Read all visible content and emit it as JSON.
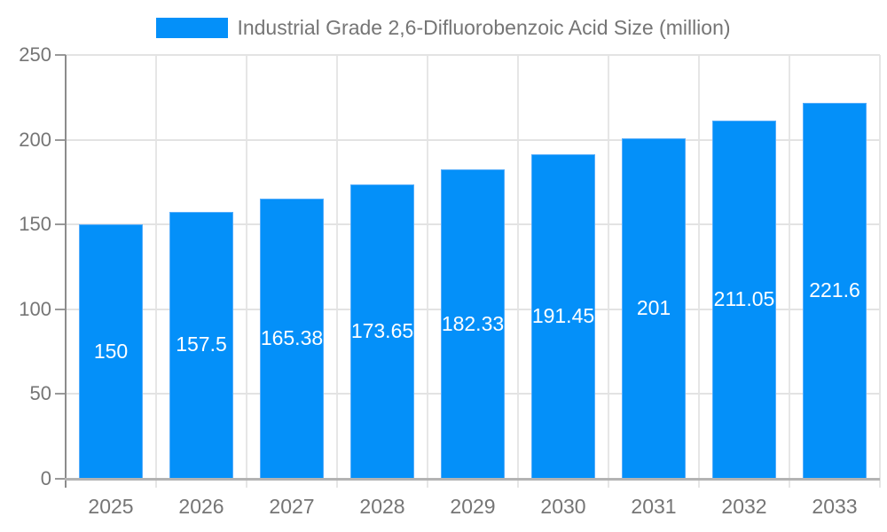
{
  "legend": {
    "label": "Industrial Grade 2,6-Difluorobenzoic Acid Size (million)"
  },
  "colors": {
    "bar_fill": "#0490f9",
    "bar_border": "#56adfb",
    "y_axis_line": "#8c8c8c",
    "x_axis_line": "#b3b3b3",
    "h_gridline": "#e3e3e3",
    "v_gridline": "#e6e6e6",
    "y_tick": "#999999",
    "axis_label_text": "#757575",
    "bar_label_text": "#ffffff",
    "background": "#ffffff"
  },
  "chart_data": {
    "type": "bar",
    "title": "Industrial Grade 2,6-Difluorobenzoic Acid Size (million)",
    "categories": [
      "2025",
      "2026",
      "2027",
      "2028",
      "2029",
      "2030",
      "2031",
      "2032",
      "2033"
    ],
    "values": [
      150,
      157.5,
      165.38,
      173.65,
      182.33,
      191.45,
      201,
      211.05,
      221.6
    ],
    "value_labels": [
      "150",
      "157.5",
      "165.38",
      "173.65",
      "182.33",
      "191.45",
      "201",
      "211.05",
      "221.6"
    ],
    "xlabel": "",
    "ylabel": "",
    "ylim": [
      0,
      250
    ],
    "yticks": [
      0,
      50,
      100,
      150,
      200,
      250
    ],
    "grid": true,
    "legend_position": "top-center",
    "value_label_position": "bar-middle"
  }
}
